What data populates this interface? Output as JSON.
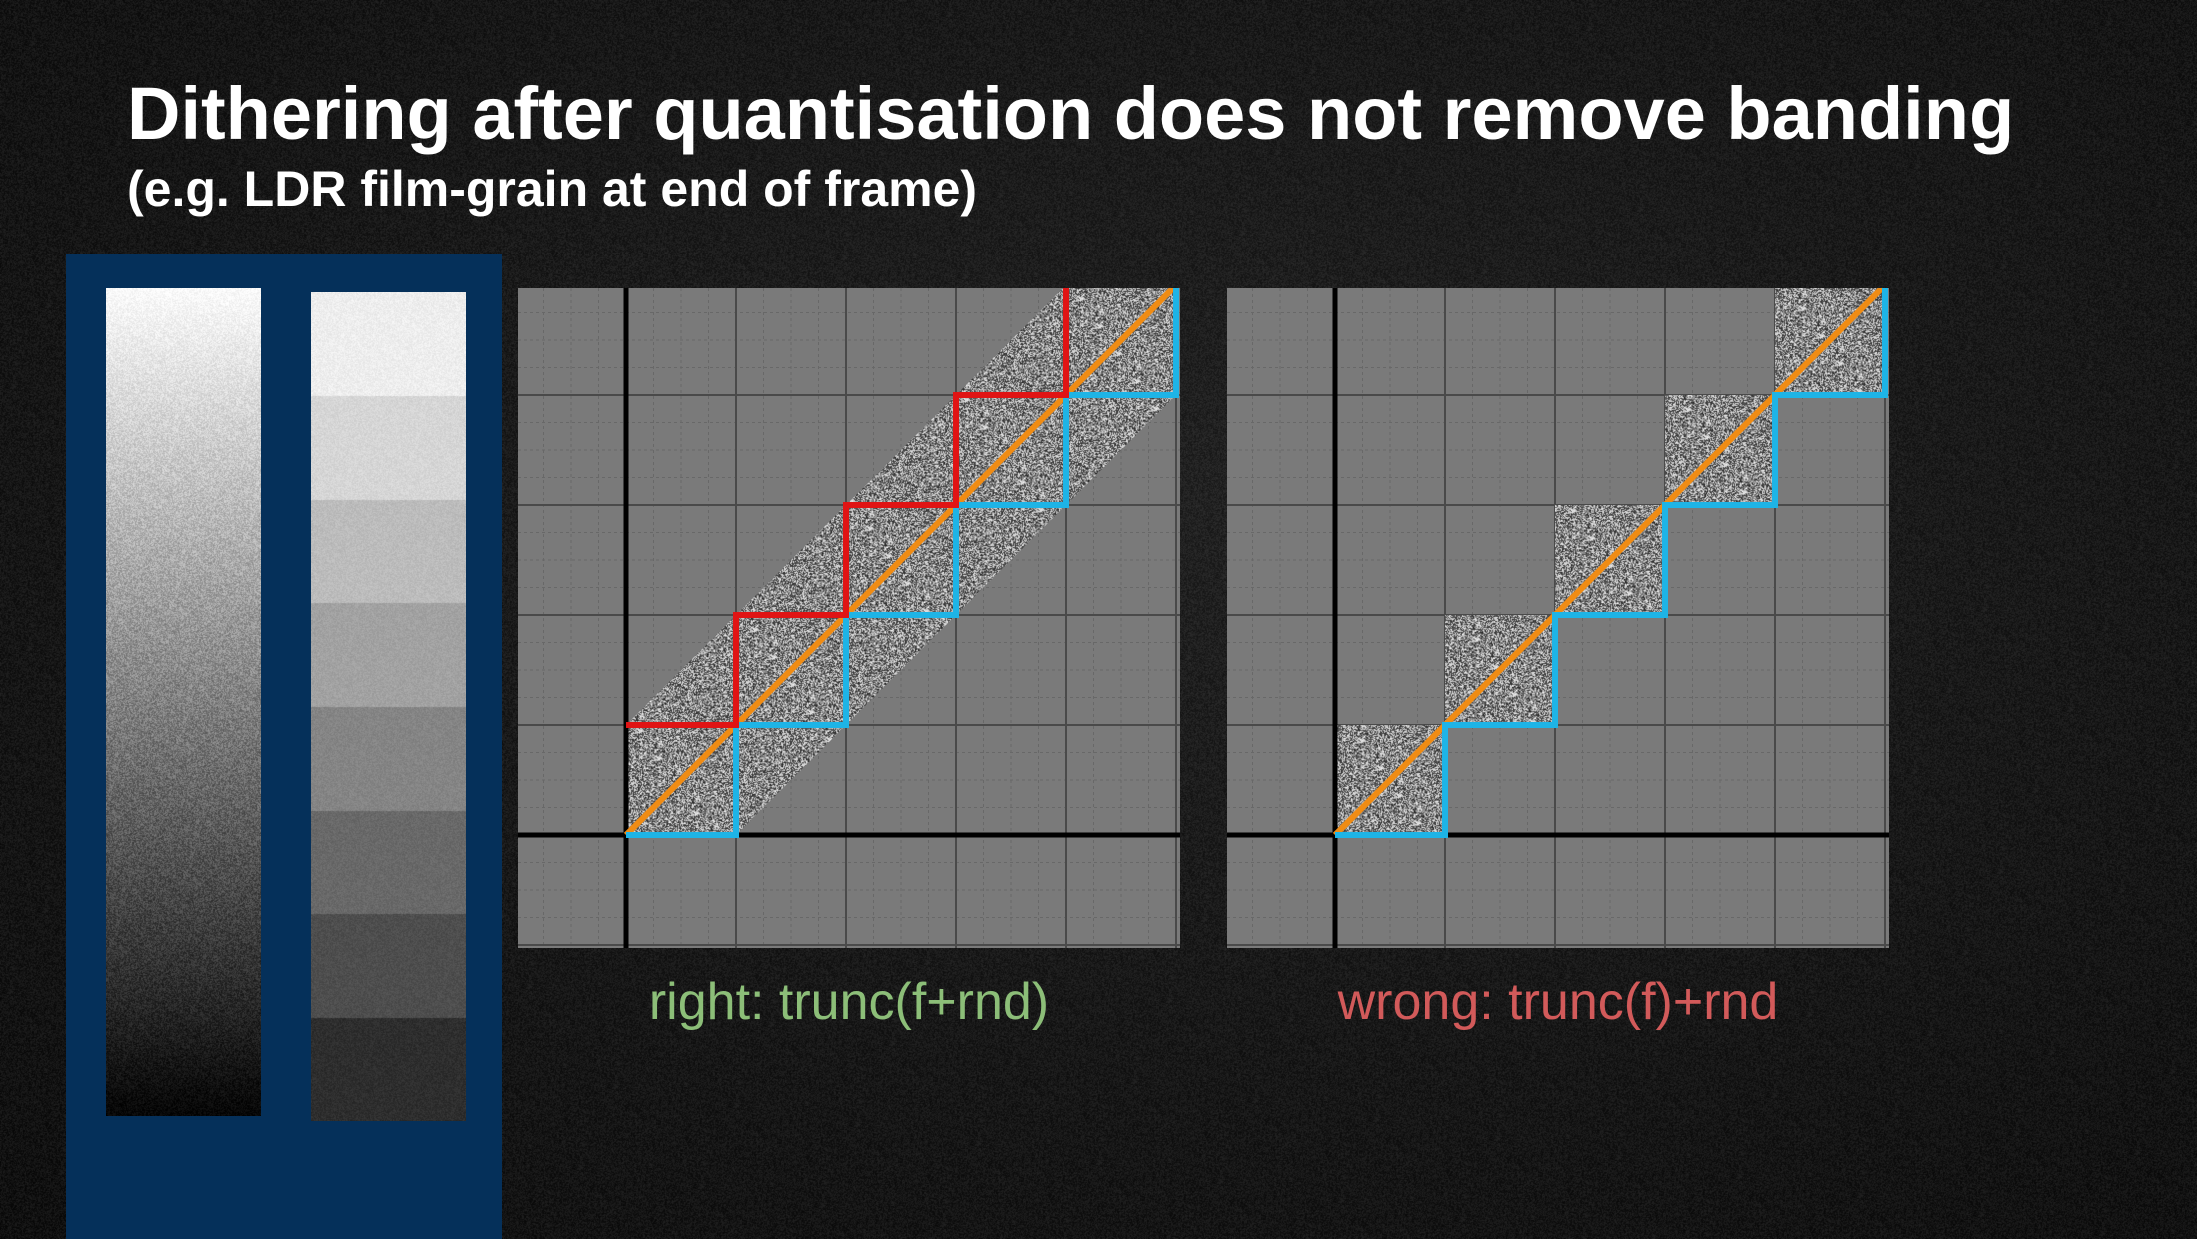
{
  "slide": {
    "title": "Dithering after quantisation does not remove banding",
    "subtitle": "(e.g. LDR film-grain at end of frame)"
  },
  "colors": {
    "background": "#1c1c1c",
    "panel_blue": "#05305a",
    "grid_fill": "#7a7a7a",
    "axis": "#000000",
    "red_step": "#e01414",
    "blue_step": "#1eb4e6",
    "orange_diagonal": "#f08c14",
    "caption_right": "#8cbe78",
    "caption_wrong": "#d25a5a"
  },
  "gradient_panel": {
    "smooth_strip": "dithered-smooth-ramp",
    "banded_strip": {
      "band_count": 8,
      "band_levels": [
        238,
        214,
        188,
        162,
        133,
        105,
        78,
        46
      ]
    }
  },
  "diagrams": [
    {
      "id": "right",
      "caption": "right: trunc(f+rnd)",
      "caption_color": "#8cbe78",
      "steps": 5,
      "shows_upper_step": true,
      "noise_region": "band-between-steps"
    },
    {
      "id": "wrong",
      "caption": "wrong: trunc(f)+rnd",
      "caption_color": "#d25a5a",
      "steps": 5,
      "shows_upper_step": false,
      "noise_region": "squares-on-diagonal"
    }
  ]
}
